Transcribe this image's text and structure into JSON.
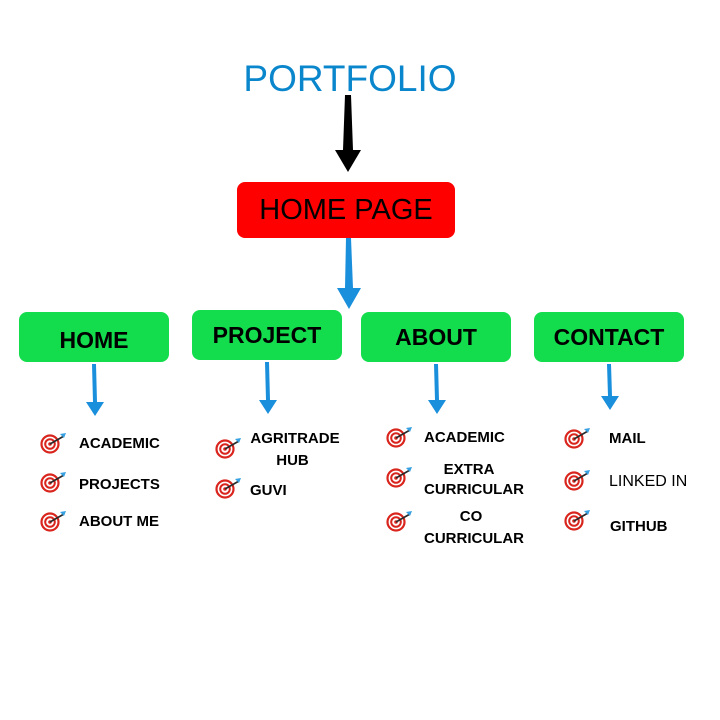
{
  "title": "PORTFOLIO",
  "root": "HOME PAGE",
  "sections": [
    {
      "label": "HOME",
      "items": [
        "ACADEMIC",
        "PROJECTS",
        "ABOUT ME"
      ]
    },
    {
      "label": "PROJECT",
      "items": [
        "AGRITRADE",
        "HUB",
        "GUVI"
      ]
    },
    {
      "label": "ABOUT",
      "items": [
        "ACADEMIC",
        "EXTRA",
        "CURRICULAR",
        "CO",
        "CURRICULAR"
      ]
    },
    {
      "label": "CONTACT",
      "items": [
        "MAIL",
        "LINKED IN",
        "GITHUB"
      ]
    }
  ],
  "colors": {
    "title": "#0a86cc",
    "root_box": "#ff0000",
    "section_box": "#13dd4d",
    "blue_arrow": "#1a8fdc",
    "black_arrow": "#000000"
  },
  "icons": {
    "bullet": "target-icon"
  }
}
